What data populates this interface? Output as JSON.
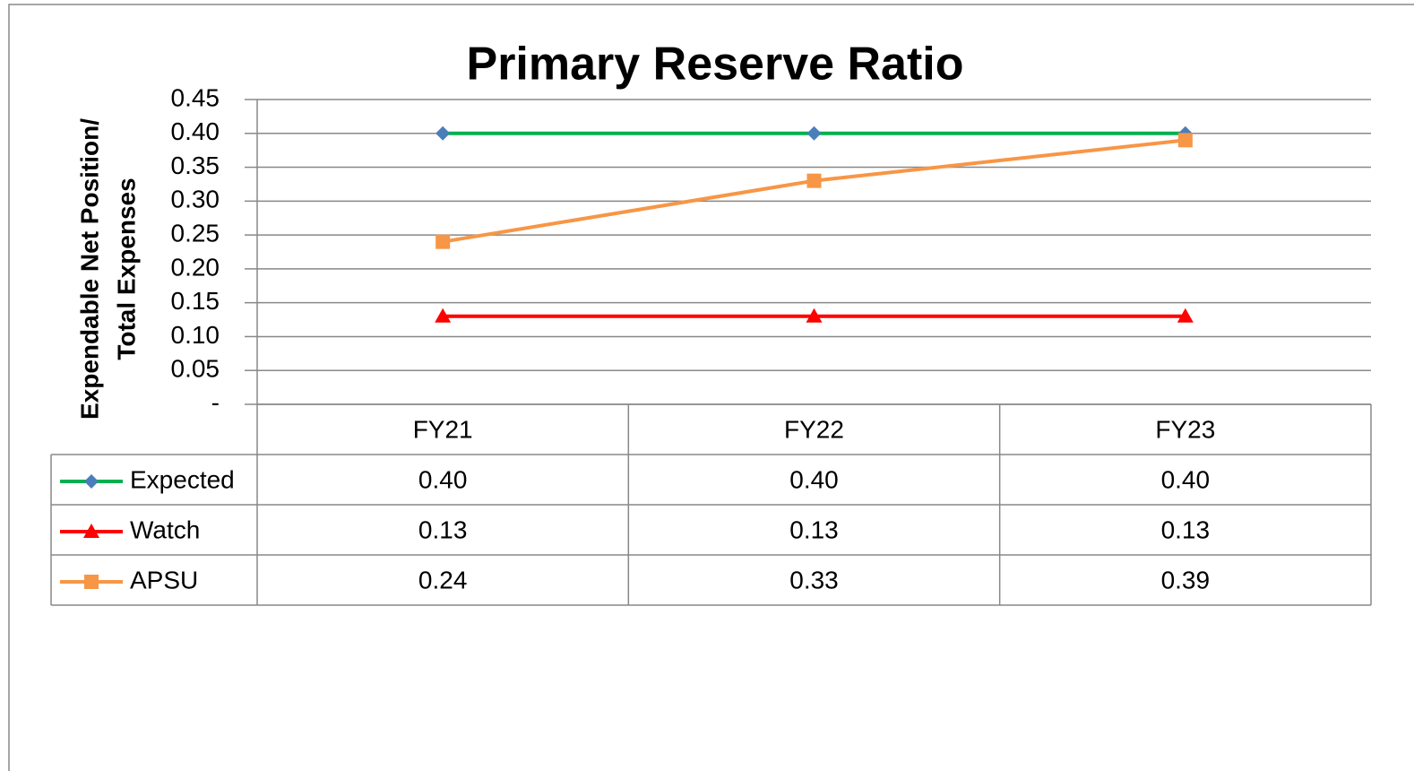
{
  "chart_data": {
    "type": "line",
    "title": "Primary Reserve Ratio",
    "ylabel": [
      "Expendable Net Position/",
      "Total Expenses"
    ],
    "categories": [
      "FY21",
      "FY22",
      "FY23"
    ],
    "series": [
      {
        "name": "Expected",
        "color": "#00b050",
        "marker": "diamond",
        "marker_color": "#4a7ebb",
        "values": [
          0.4,
          0.4,
          0.4
        ],
        "value_labels": [
          "0.40",
          "0.40",
          "0.40"
        ]
      },
      {
        "name": "Watch",
        "color": "#ff0000",
        "marker": "triangle",
        "marker_color": "#ff0000",
        "values": [
          0.13,
          0.13,
          0.13
        ],
        "value_labels": [
          "0.13",
          "0.13",
          "0.13"
        ]
      },
      {
        "name": "APSU",
        "color": "#f79646",
        "marker": "square",
        "marker_color": "#f79646",
        "values": [
          0.24,
          0.33,
          0.39
        ],
        "value_labels": [
          "0.24",
          "0.33",
          "0.39"
        ]
      }
    ],
    "ylim": [
      0,
      0.45
    ],
    "yticks": [
      {
        "value": 0,
        "label": "-"
      },
      0.05,
      {
        "value": 0.1,
        "label": "0.10"
      },
      0.15,
      {
        "value": 0.2,
        "label": "0.20"
      },
      0.25,
      {
        "value": 0.3,
        "label": "0.30"
      },
      0.35,
      {
        "value": 0.4,
        "label": "0.40"
      },
      0.45
    ],
    "grid": true,
    "data_table": true
  }
}
